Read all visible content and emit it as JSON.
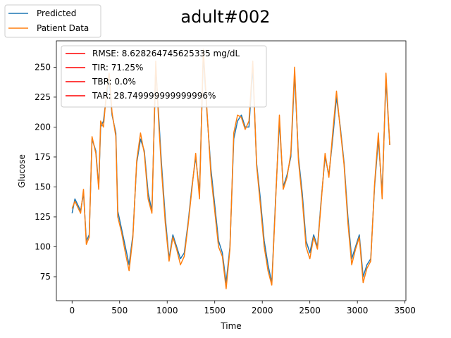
{
  "chart_data": {
    "type": "line",
    "title": "adult#002",
    "xlabel": "Time",
    "ylabel": "Glucose",
    "xlim": [
      -165,
      3510
    ],
    "ylim": [
      55,
      272
    ],
    "xticks": [
      0,
      500,
      1000,
      1500,
      2000,
      2500,
      3000,
      3500
    ],
    "yticks": [
      75,
      100,
      125,
      150,
      175,
      200,
      225,
      250
    ],
    "grid": false,
    "legend_outside": {
      "placement": "top-left outside",
      "entries": [
        {
          "label": "Predicted",
          "color": "#1f77b4"
        },
        {
          "label": "Patient Data",
          "color": "#ff7f0e"
        }
      ]
    },
    "legend_inside": {
      "placement": "upper-left",
      "entries": [
        {
          "label": "RMSE: 8.628264745625335 mg/dL",
          "color": "#ff0000"
        },
        {
          "label": "TIR: 71.25%",
          "color": "#ff0000"
        },
        {
          "label": "TBR: 0.0%",
          "color": "#ff0000"
        },
        {
          "label": "TAR: 28.749999999999996%",
          "color": "#ff0000"
        }
      ]
    },
    "series": [
      {
        "name": "Predicted",
        "color": "#1f77b4",
        "x": [
          0,
          30,
          60,
          90,
          120,
          150,
          180,
          210,
          250,
          280,
          300,
          330,
          360,
          390,
          420,
          460,
          480,
          520,
          560,
          600,
          640,
          680,
          720,
          760,
          800,
          840,
          880,
          910,
          940,
          980,
          1020,
          1060,
          1100,
          1140,
          1180,
          1220,
          1260,
          1300,
          1340,
          1380,
          1420,
          1460,
          1500,
          1540,
          1580,
          1620,
          1660,
          1700,
          1740,
          1780,
          1820,
          1860,
          1900,
          1940,
          1980,
          2020,
          2060,
          2100,
          2140,
          2180,
          2220,
          2260,
          2300,
          2340,
          2380,
          2420,
          2460,
          2500,
          2540,
          2580,
          2620,
          2660,
          2700,
          2740,
          2780,
          2820,
          2860,
          2900,
          2940,
          2980,
          3020,
          3060,
          3100,
          3140,
          3180,
          3220,
          3260,
          3300,
          3340
        ],
        "y": [
          128,
          140,
          135,
          130,
          145,
          105,
          110,
          190,
          180,
          150,
          200,
          205,
          225,
          240,
          210,
          195,
          130,
          115,
          100,
          85,
          110,
          170,
          190,
          180,
          145,
          130,
          250,
          210,
          170,
          125,
          90,
          110,
          100,
          90,
          95,
          120,
          150,
          175,
          145,
          260,
          210,
          165,
          135,
          105,
          95,
          70,
          100,
          190,
          205,
          210,
          200,
          200,
          250,
          170,
          140,
          105,
          85,
          70,
          140,
          205,
          150,
          160,
          175,
          245,
          175,
          145,
          105,
          95,
          110,
          100,
          140,
          175,
          160,
          190,
          225,
          200,
          170,
          125,
          90,
          100,
          110,
          75,
          85,
          90,
          150,
          190,
          145,
          240,
          185
        ]
      },
      {
        "name": "Patient Data",
        "color": "#ff7f0e",
        "x": [
          0,
          30,
          60,
          90,
          120,
          150,
          180,
          210,
          250,
          280,
          300,
          330,
          360,
          390,
          420,
          460,
          480,
          520,
          560,
          600,
          640,
          680,
          720,
          760,
          800,
          840,
          880,
          910,
          940,
          980,
          1020,
          1060,
          1100,
          1140,
          1180,
          1220,
          1260,
          1300,
          1340,
          1380,
          1420,
          1460,
          1500,
          1540,
          1580,
          1620,
          1660,
          1700,
          1740,
          1780,
          1820,
          1860,
          1900,
          1940,
          1980,
          2020,
          2060,
          2100,
          2140,
          2180,
          2220,
          2260,
          2300,
          2340,
          2380,
          2420,
          2460,
          2500,
          2540,
          2580,
          2620,
          2660,
          2700,
          2740,
          2780,
          2820,
          2860,
          2900,
          2940,
          2980,
          3020,
          3060,
          3100,
          3140,
          3180,
          3220,
          3260,
          3300,
          3340
        ],
        "y": [
          132,
          138,
          133,
          128,
          148,
          102,
          108,
          192,
          178,
          148,
          205,
          200,
          228,
          245,
          212,
          192,
          125,
          112,
          95,
          80,
          108,
          172,
          195,
          178,
          140,
          128,
          255,
          205,
          165,
          120,
          88,
          108,
          98,
          85,
          92,
          118,
          148,
          178,
          140,
          265,
          212,
          160,
          130,
          100,
          92,
          65,
          98,
          195,
          210,
          208,
          198,
          205,
          255,
          168,
          135,
          100,
          80,
          68,
          138,
          210,
          148,
          158,
          178,
          250,
          172,
          140,
          100,
          90,
          108,
          98,
          138,
          178,
          158,
          195,
          230,
          198,
          168,
          120,
          85,
          98,
          108,
          70,
          82,
          88,
          152,
          195,
          140,
          245,
          185
        ]
      }
    ]
  }
}
